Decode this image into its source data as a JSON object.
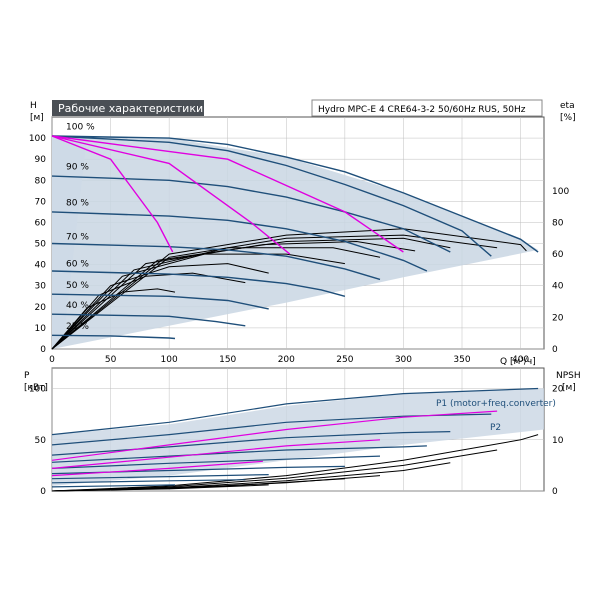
{
  "colors": {
    "curve": "#1f4f7a",
    "magenta": "#e000e0",
    "black": "#000000",
    "band": "#c9d6e3",
    "light_band": "#e8f1fa",
    "grid": "#bfbfbf",
    "title_bg": "#4a4f55",
    "title_text": "#ffffff"
  },
  "chart_data": [
    {
      "type": "line",
      "title": "Рабочие характеристики",
      "subtitle": "Hydro MPC-E 4 CRE64-3-2 50/60Hz RUS, 50Hz",
      "ylabel_left": "H",
      "ylabel_left_unit": "[м]",
      "ylabel_right": "eta",
      "ylabel_right_unit": "[%]",
      "xlabel": "Q [м³/ч]",
      "xlim": [
        0,
        420
      ],
      "ylim": [
        0,
        110
      ],
      "y2lim": [
        0,
        146.7
      ],
      "grid": true,
      "x_ticks": [
        "0",
        "50",
        "100",
        "150",
        "200",
        "250",
        "300",
        "350",
        "400"
      ],
      "y_ticks": [
        "0",
        "10",
        "20",
        "30",
        "40",
        "50",
        "60",
        "70",
        "80",
        "90",
        "100"
      ],
      "y2_ticks": [
        "0",
        "20",
        "40",
        "60",
        "80",
        "100"
      ],
      "speed_labels": [
        {
          "text": "100 %",
          "x": 12,
          "y": 104
        },
        {
          "text": "90 %",
          "x": 12,
          "y": 85
        },
        {
          "text": "80 %",
          "x": 12,
          "y": 68
        },
        {
          "text": "70 %",
          "x": 12,
          "y": 52
        },
        {
          "text": "60 %",
          "x": 12,
          "y": 39
        },
        {
          "text": "50 %",
          "x": 12,
          "y": 29
        },
        {
          "text": "40 %",
          "x": 12,
          "y": 19.5
        },
        {
          "text": "25 %",
          "x": 12,
          "y": 9.5
        }
      ],
      "qh_envelope": [
        [
          0,
          101
        ],
        [
          100,
          100
        ],
        [
          200,
          91
        ],
        [
          300,
          74
        ],
        [
          400,
          52
        ],
        [
          415,
          47
        ],
        [
          300,
          34
        ],
        [
          200,
          22
        ],
        [
          100,
          11
        ],
        [
          0,
          0
        ]
      ],
      "qh_series": [
        {
          "values": [
            [
              0,
              101
            ],
            [
              100,
              100
            ],
            [
              150,
              97
            ],
            [
              200,
              91
            ],
            [
              250,
              84
            ],
            [
              300,
              74
            ],
            [
              350,
              63
            ],
            [
              400,
              52
            ],
            [
              415,
              46
            ]
          ]
        },
        {
          "values": [
            [
              0,
              101
            ],
            [
              100,
              98
            ],
            [
              150,
              94
            ],
            [
              200,
              87
            ],
            [
              250,
              78
            ],
            [
              300,
              68
            ],
            [
              350,
              56
            ],
            [
              375,
              44
            ]
          ]
        },
        {
          "values": [
            [
              0,
              82
            ],
            [
              100,
              80
            ],
            [
              150,
              77
            ],
            [
              200,
              72
            ],
            [
              250,
              65
            ],
            [
              300,
              57
            ],
            [
              340,
              46
            ]
          ]
        },
        {
          "values": [
            [
              0,
              65
            ],
            [
              100,
              63
            ],
            [
              150,
              61
            ],
            [
              200,
              57
            ],
            [
              250,
              51
            ],
            [
              300,
              42
            ],
            [
              320,
              37
            ]
          ]
        },
        {
          "values": [
            [
              0,
              50
            ],
            [
              100,
              48.5
            ],
            [
              150,
              47
            ],
            [
              200,
              44
            ],
            [
              250,
              38
            ],
            [
              280,
              33
            ]
          ]
        },
        {
          "values": [
            [
              0,
              37
            ],
            [
              100,
              35.5
            ],
            [
              150,
              34
            ],
            [
              200,
              31
            ],
            [
              230,
              28
            ],
            [
              250,
              25
            ]
          ]
        },
        {
          "values": [
            [
              0,
              26
            ],
            [
              100,
              25
            ],
            [
              150,
              23
            ],
            [
              185,
              19
            ]
          ]
        },
        {
          "values": [
            [
              0,
              16.5
            ],
            [
              100,
              15.5
            ],
            [
              140,
              13
            ],
            [
              165,
              11
            ]
          ]
        },
        {
          "values": [
            [
              0,
              6.5
            ],
            [
              50,
              6.2
            ],
            [
              100,
              5.2
            ],
            [
              105,
              5
            ]
          ]
        }
      ],
      "qh_system_curves": [
        {
          "values": [
            [
              0,
              101
            ],
            [
              50,
              90
            ],
            [
              90,
              60
            ],
            [
              103,
              46
            ]
          ]
        },
        {
          "values": [
            [
              0,
              101
            ],
            [
              100,
              88
            ],
            [
              170,
              60
            ],
            [
              203,
              45
            ]
          ]
        },
        {
          "values": [
            [
              0,
              101
            ],
            [
              150,
              90
            ],
            [
              250,
              65
            ],
            [
              300,
              46
            ]
          ]
        }
      ],
      "eta_series": [
        {
          "values": [
            [
              0,
              0
            ],
            [
              100,
              60
            ],
            [
              200,
              72
            ],
            [
              300,
              76
            ],
            [
              400,
              66
            ],
            [
              405,
              62
            ]
          ]
        },
        {
          "values": [
            [
              0,
              0
            ],
            [
              100,
              58
            ],
            [
              200,
              70
            ],
            [
              300,
              72
            ],
            [
              380,
              64
            ]
          ]
        },
        {
          "values": [
            [
              0,
              0
            ],
            [
              90,
              56
            ],
            [
              200,
              68
            ],
            [
              300,
              70
            ],
            [
              340,
              64
            ]
          ]
        },
        {
          "values": [
            [
              0,
              0
            ],
            [
              80,
              54
            ],
            [
              180,
              66
            ],
            [
              260,
              68
            ],
            [
              310,
              62
            ]
          ]
        },
        {
          "values": [
            [
              0,
              0
            ],
            [
              70,
              50
            ],
            [
              150,
              64
            ],
            [
              240,
              64
            ],
            [
              280,
              58
            ]
          ]
        },
        {
          "values": [
            [
              0,
              0
            ],
            [
              60,
              46
            ],
            [
              130,
              60
            ],
            [
              200,
              60
            ],
            [
              250,
              54
            ]
          ]
        },
        {
          "values": [
            [
              0,
              0
            ],
            [
              50,
              40
            ],
            [
              100,
              52
            ],
            [
              150,
              54
            ],
            [
              185,
              48
            ]
          ]
        },
        {
          "values": [
            [
              0,
              0
            ],
            [
              40,
              34
            ],
            [
              80,
              46
            ],
            [
              120,
              48
            ],
            [
              165,
              42
            ]
          ]
        },
        {
          "values": [
            [
              0,
              0
            ],
            [
              30,
              26
            ],
            [
              60,
              36
            ],
            [
              90,
              38
            ],
            [
              105,
              36
            ]
          ]
        }
      ]
    },
    {
      "type": "line",
      "ylabel_left": "P",
      "ylabel_left_unit": "[кВт]",
      "ylabel_right": "NPSH",
      "ylabel_right_unit": "[м]",
      "xlim": [
        0,
        420
      ],
      "ylim": [
        0,
        120
      ],
      "y2lim": [
        0,
        24
      ],
      "grid": true,
      "y_ticks": [
        "0",
        "50",
        "100"
      ],
      "y2_ticks": [
        "0",
        "10",
        "20"
      ],
      "series_labels": [
        "P1 (motor+freq.converter)",
        "P2"
      ],
      "p1_envelope": [
        [
          0,
          55
        ],
        [
          100,
          65
        ],
        [
          200,
          83
        ],
        [
          300,
          95
        ],
        [
          420,
          100
        ],
        [
          420,
          60
        ],
        [
          300,
          45
        ],
        [
          200,
          30
        ],
        [
          100,
          15
        ],
        [
          0,
          5
        ]
      ],
      "p1_series": [
        {
          "values": [
            [
              0,
              55
            ],
            [
              100,
              67
            ],
            [
              200,
              85
            ],
            [
              300,
              95
            ],
            [
              415,
              100
            ]
          ]
        },
        {
          "values": [
            [
              0,
              45
            ],
            [
              100,
              55
            ],
            [
              200,
              67
            ],
            [
              300,
              73
            ],
            [
              375,
              75
            ]
          ]
        },
        {
          "values": [
            [
              0,
              35
            ],
            [
              100,
              43
            ],
            [
              200,
              52
            ],
            [
              300,
              57
            ],
            [
              340,
              58
            ]
          ]
        },
        {
          "values": [
            [
              0,
              28
            ],
            [
              100,
              34
            ],
            [
              200,
              40
            ],
            [
              300,
              43
            ],
            [
              320,
              44
            ]
          ]
        },
        {
          "values": [
            [
              0,
              22
            ],
            [
              100,
              27
            ],
            [
              200,
              31
            ],
            [
              280,
              34
            ]
          ]
        },
        {
          "values": [
            [
              0,
              17
            ],
            [
              100,
              20
            ],
            [
              200,
              23
            ],
            [
              250,
              24
            ]
          ]
        },
        {
          "values": [
            [
              0,
              12
            ],
            [
              100,
              14
            ],
            [
              185,
              16
            ]
          ]
        },
        {
          "values": [
            [
              0,
              8
            ],
            [
              100,
              10
            ],
            [
              165,
              11
            ]
          ]
        },
        {
          "values": [
            [
              0,
              4
            ],
            [
              105,
              6
            ]
          ]
        }
      ],
      "p2_series": [
        {
          "values": [
            [
              0,
              30
            ],
            [
              100,
              45
            ],
            [
              200,
              60
            ],
            [
              300,
              72
            ],
            [
              380,
              78
            ]
          ]
        },
        {
          "values": [
            [
              0,
              22
            ],
            [
              100,
              33
            ],
            [
              200,
              44
            ],
            [
              280,
              50
            ]
          ]
        },
        {
          "values": [
            [
              0,
              15
            ],
            [
              100,
              22
            ],
            [
              180,
              29
            ]
          ]
        }
      ],
      "npsh_series": [
        {
          "values": [
            [
              0,
              0
            ],
            [
              100,
              1
            ],
            [
              200,
              3
            ],
            [
              300,
              6
            ],
            [
              400,
              10
            ],
            [
              415,
              11
            ]
          ]
        },
        {
          "values": [
            [
              0,
              0
            ],
            [
              100,
              0.8
            ],
            [
              200,
              2.5
            ],
            [
              300,
              5
            ],
            [
              380,
              8
            ]
          ]
        },
        {
          "values": [
            [
              0,
              0
            ],
            [
              100,
              0.6
            ],
            [
              200,
              2
            ],
            [
              300,
              4
            ],
            [
              340,
              5.5
            ]
          ]
        },
        {
          "values": [
            [
              0,
              0
            ],
            [
              100,
              0.5
            ],
            [
              200,
              1.6
            ],
            [
              280,
              3
            ]
          ]
        },
        {
          "values": [
            [
              0,
              0
            ],
            [
              150,
              1
            ],
            [
              250,
              2.4
            ]
          ]
        },
        {
          "values": [
            [
              0,
              0
            ],
            [
              100,
              0.4
            ],
            [
              185,
              1.2
            ]
          ]
        },
        {
          "values": [
            [
              0,
              0
            ],
            [
              105,
              0.5
            ]
          ]
        }
      ]
    }
  ]
}
